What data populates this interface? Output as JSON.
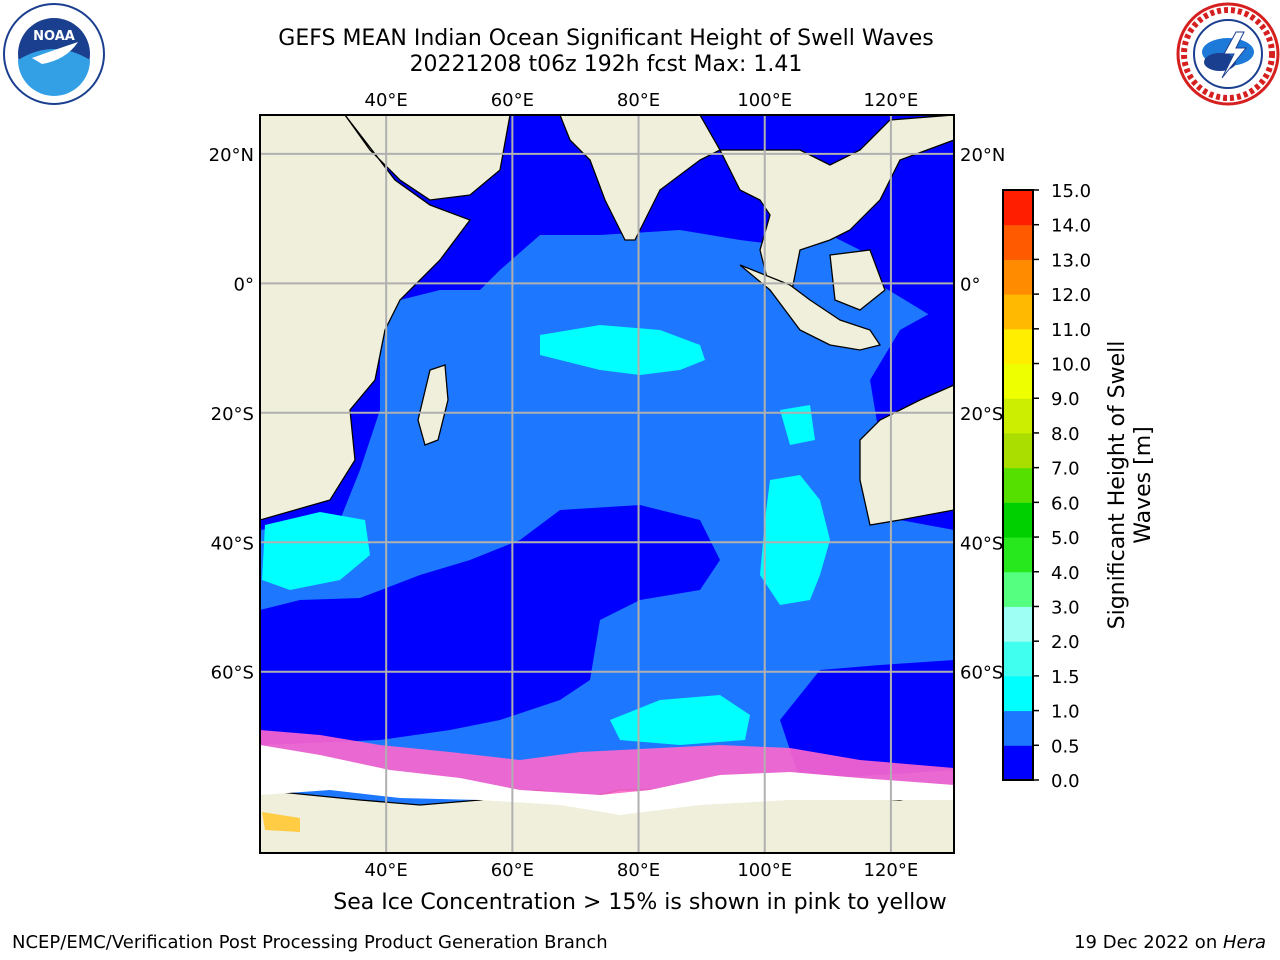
{
  "header": {
    "title_line1": "GEFS MEAN Indian Ocean Significant Height of Swell Waves",
    "title_line2": "20221208 t06z 192h fcst   Max: 1.41"
  },
  "logos": {
    "left": "noaa-logo",
    "right": "national-weather-service-logo"
  },
  "map": {
    "projection": "equirectangular",
    "lon_range": [
      20,
      130
    ],
    "lat_range": [
      -88,
      26
    ],
    "lon_ticks": [
      "40°E",
      "60°E",
      "80°E",
      "100°E",
      "120°E"
    ],
    "lon_tick_values": [
      40,
      60,
      80,
      100,
      120
    ],
    "lat_ticks_left": [
      "20°N",
      "0°",
      "20°S",
      "40°S",
      "60°S"
    ],
    "lat_ticks_right": [
      "20°N",
      "0°",
      "20°S",
      "40°S",
      "60°S"
    ],
    "lat_tick_values": [
      20,
      0,
      -20,
      -40,
      -60
    ],
    "grid": true,
    "colors": {
      "land": "#efefdc",
      "ocean_low": "#0000ff",
      "ocean_mid": "#1e78ff",
      "swell_high": "#00ffff",
      "ice": "#ff66cc",
      "ice_cap": "#ffffff"
    }
  },
  "colorbar": {
    "label_line1": "Significant Height of Swell",
    "label_line2": "Waves [m]",
    "ticks": [
      "0.0",
      "0.5",
      "1.0",
      "1.5",
      "2.0",
      "3.0",
      "4.0",
      "5.0",
      "6.0",
      "7.0",
      "8.0",
      "9.0",
      "10.0",
      "11.0",
      "12.0",
      "13.0",
      "14.0",
      "15.0"
    ],
    "colors": [
      "#0000ff",
      "#1e78ff",
      "#00ffff",
      "#40ffee",
      "#9efff4",
      "#55ff80",
      "#26e81d",
      "#00d000",
      "#55e000",
      "#aadd00",
      "#ccee00",
      "#eeff00",
      "#ffee00",
      "#ffb900",
      "#ff8c00",
      "#ff5a00",
      "#ff1e00"
    ]
  },
  "footer": {
    "note": "Sea Ice Concentration > 15% is shown in pink to yellow",
    "left": "NCEP/EMC/Verification Post Processing Product Generation Branch",
    "right_date": "19 Dec 2022 on ",
    "right_host": "Hera"
  }
}
